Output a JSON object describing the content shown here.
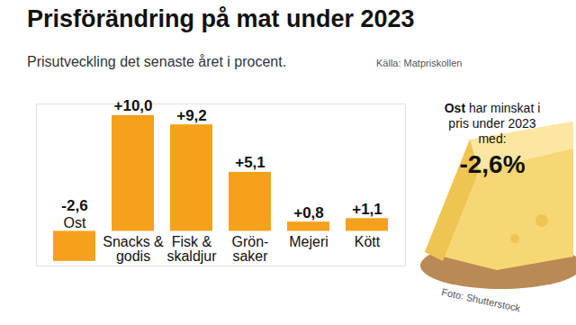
{
  "chart_data": {
    "type": "bar",
    "title": "Prisförändring på mat under 2023",
    "subtitle": "Prisutveckling det senaste året i procent.",
    "source": "Källa: Matpriskollen",
    "categories": [
      "Ost",
      "Snacks &\ngodis",
      "Fisk &\nskaldjur",
      "Grön-\nsaker",
      "Mejeri",
      "Kött"
    ],
    "values": [
      -2.6,
      10.0,
      9.2,
      5.1,
      0.8,
      1.1
    ],
    "value_labels": [
      "-2,6",
      "+10,0",
      "+9,2",
      "+5,1",
      "+0,8",
      "+1,1"
    ],
    "color": "#f5a11c",
    "ylim": [
      -3,
      11
    ],
    "yticks": [],
    "grid": false,
    "data_labels": true,
    "tick_labels": "x",
    "annotation": {
      "highlight": "Ost",
      "text": "har minskat i pris under 2023 med:",
      "value_label": "-2,6%"
    },
    "credit": "Foto: Shutterstock"
  }
}
